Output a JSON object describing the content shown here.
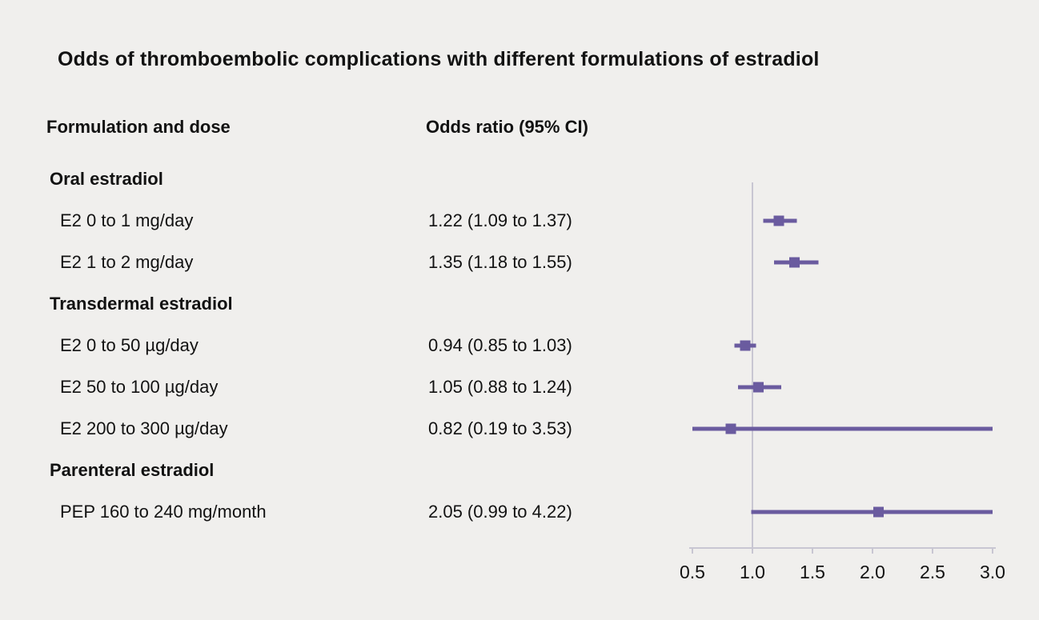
{
  "columns": {
    "formulation": "Formulation and dose",
    "odds_ratio": "Odds ratio (95% CI)"
  },
  "chart_data": {
    "type": "forest",
    "title": "Odds of thromboembolic complications with different formulations of estradiol",
    "axis": {
      "min": 0.5,
      "max": 3.0,
      "reference_line": 1.0,
      "ticks": [
        0.5,
        1.0,
        1.5,
        2.0,
        2.5,
        3.0
      ],
      "tick_labels": [
        "0.5",
        "1.0",
        "1.5",
        "2.0",
        "2.5",
        "3.0"
      ]
    },
    "colors": {
      "marker": "#6a5b9f",
      "ci_line": "#6a5b9f",
      "axis_line": "#c8c6d2",
      "background": "#f0efed",
      "text": "#121212"
    },
    "rows": [
      {
        "kind": "group",
        "label": "Oral estradiol"
      },
      {
        "kind": "item",
        "label": "E2 0 to 1 mg/day",
        "or_text": "1.22 (1.09 to 1.37)",
        "estimate": 1.22,
        "lower": 1.09,
        "upper": 1.37
      },
      {
        "kind": "item",
        "label": "E2 1 to 2 mg/day",
        "or_text": "1.35 (1.18 to 1.55)",
        "estimate": 1.35,
        "lower": 1.18,
        "upper": 1.55
      },
      {
        "kind": "group",
        "label": "Transdermal estradiol"
      },
      {
        "kind": "item",
        "label": "E2 0 to 50 µg/day",
        "or_text": "0.94 (0.85 to 1.03)",
        "estimate": 0.94,
        "lower": 0.85,
        "upper": 1.03
      },
      {
        "kind": "item",
        "label": "E2 50 to 100 µg/day",
        "or_text": "1.05 (0.88 to 1.24)",
        "estimate": 1.05,
        "lower": 0.88,
        "upper": 1.24
      },
      {
        "kind": "item",
        "label": "E2 200 to 300 µg/day",
        "or_text": "0.82 (0.19 to 3.53)",
        "estimate": 0.82,
        "lower": 0.19,
        "upper": 3.53
      },
      {
        "kind": "group",
        "label": "Parenteral estradiol"
      },
      {
        "kind": "item",
        "label": "PEP 160 to 240 mg/month",
        "or_text": "2.05 (0.99 to 4.22)",
        "estimate": 2.05,
        "lower": 0.99,
        "upper": 4.22
      }
    ]
  }
}
